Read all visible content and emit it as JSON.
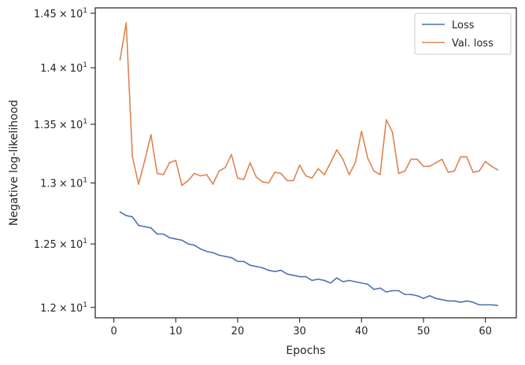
{
  "chart_data": {
    "type": "line",
    "xlabel": "Epochs",
    "ylabel": "Negative log-likelihood",
    "y_scale": "log",
    "xlim": [
      -3,
      65
    ],
    "ylim": [
      11.92,
      14.55
    ],
    "x_ticks": [
      {
        "value": 0,
        "label": "0"
      },
      {
        "value": 10,
        "label": "10"
      },
      {
        "value": 20,
        "label": "20"
      },
      {
        "value": 30,
        "label": "30"
      },
      {
        "value": 40,
        "label": "40"
      },
      {
        "value": 50,
        "label": "50"
      },
      {
        "value": 60,
        "label": "60"
      }
    ],
    "y_ticks": [
      {
        "value": 12.0,
        "mantissa": "1.2"
      },
      {
        "value": 12.5,
        "mantissa": "1.25"
      },
      {
        "value": 13.0,
        "mantissa": "1.3"
      },
      {
        "value": 13.5,
        "mantissa": "1.35"
      },
      {
        "value": 14.0,
        "mantissa": "1.4"
      },
      {
        "value": 14.5,
        "mantissa": "1.45"
      }
    ],
    "y_tick_base": "10",
    "y_tick_exponent": "1",
    "y_tick_times": "×",
    "legend_position": "top-right",
    "grid": false,
    "x": [
      1,
      2,
      3,
      4,
      5,
      6,
      7,
      8,
      9,
      10,
      11,
      12,
      13,
      14,
      15,
      16,
      17,
      18,
      19,
      20,
      21,
      22,
      23,
      24,
      25,
      26,
      27,
      28,
      29,
      30,
      31,
      32,
      33,
      34,
      35,
      36,
      37,
      38,
      39,
      40,
      41,
      42,
      43,
      44,
      45,
      46,
      47,
      48,
      49,
      50,
      51,
      52,
      53,
      54,
      55,
      56,
      57,
      58,
      59,
      60,
      61,
      62
    ],
    "series": [
      {
        "name": "Loss",
        "color": "#4c72b0",
        "values": [
          12.76,
          12.73,
          12.72,
          12.65,
          12.64,
          12.63,
          12.58,
          12.58,
          12.55,
          12.54,
          12.53,
          12.5,
          12.49,
          12.46,
          12.44,
          12.43,
          12.41,
          12.4,
          12.39,
          12.36,
          12.36,
          12.33,
          12.32,
          12.31,
          12.29,
          12.28,
          12.29,
          12.26,
          12.25,
          12.24,
          12.24,
          12.21,
          12.22,
          12.21,
          12.19,
          12.23,
          12.2,
          12.21,
          12.2,
          12.19,
          12.18,
          12.14,
          12.15,
          12.12,
          12.13,
          12.13,
          12.1,
          12.1,
          12.09,
          12.07,
          12.09,
          12.07,
          12.06,
          12.05,
          12.05,
          12.04,
          12.05,
          12.04,
          12.02,
          12.02,
          12.02,
          12.015
        ]
      },
      {
        "name": "Val. loss",
        "color": "#dd8452",
        "values": [
          14.07,
          14.41,
          13.22,
          12.99,
          13.19,
          13.41,
          13.08,
          13.07,
          13.17,
          13.19,
          12.98,
          13.02,
          13.08,
          13.06,
          13.07,
          12.99,
          13.1,
          13.13,
          13.24,
          13.04,
          13.03,
          13.17,
          13.05,
          13.01,
          13.0,
          13.09,
          13.08,
          13.02,
          13.02,
          13.15,
          13.06,
          13.04,
          13.12,
          13.07,
          13.17,
          13.28,
          13.2,
          13.07,
          13.17,
          13.44,
          13.21,
          13.1,
          13.07,
          13.54,
          13.43,
          13.08,
          13.1,
          13.2,
          13.2,
          13.14,
          13.14,
          13.17,
          13.2,
          13.09,
          13.1,
          13.22,
          13.22,
          13.09,
          13.1,
          13.18,
          13.14,
          13.11
        ]
      }
    ]
  }
}
